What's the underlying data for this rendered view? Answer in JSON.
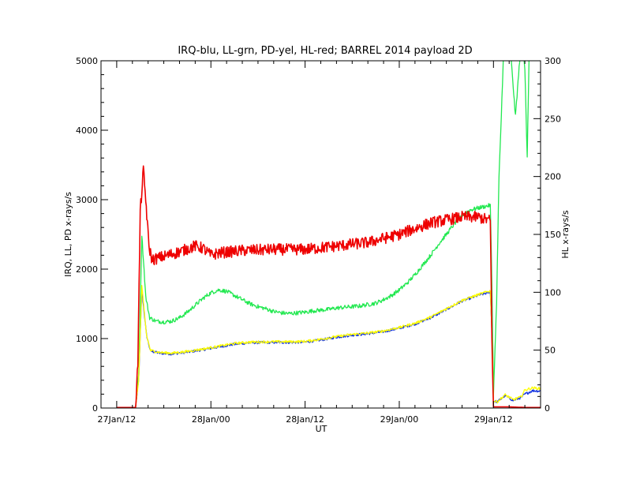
{
  "chart_data": {
    "type": "line",
    "title": "IRQ-blu, LL-grn, PD-yel, HL-red; BARREL 2014 payload 2D",
    "xlabel": "UT",
    "ylabel": "IRQ, LL, PD x-rays/s",
    "y2label": "HL x-rays/s",
    "x_ticks": [
      "27Jan/12",
      "28Jan/00",
      "28Jan/12",
      "29Jan/00",
      "29Jan/12"
    ],
    "xlim_hours": [
      -2,
      54
    ],
    "ylim": [
      0,
      5000
    ],
    "y_ticks": [
      0,
      1000,
      2000,
      3000,
      4000,
      5000
    ],
    "y2lim": [
      0,
      300
    ],
    "y2_ticks": [
      0,
      50,
      100,
      150,
      200,
      250,
      300
    ],
    "grid": false,
    "series": [
      {
        "axis": "left",
        "color": "#1030e0",
        "points": [
          [
            0,
            10
          ],
          [
            2.4,
            10
          ],
          [
            2.8,
            400
          ],
          [
            3.2,
            1700
          ],
          [
            3.8,
            1050
          ],
          [
            4.3,
            820
          ],
          [
            5.5,
            790
          ],
          [
            7,
            780
          ],
          [
            9,
            805
          ],
          [
            11,
            840
          ],
          [
            13,
            880
          ],
          [
            15,
            920
          ],
          [
            17,
            940
          ],
          [
            20,
            945
          ],
          [
            22,
            945
          ],
          [
            24,
            950
          ],
          [
            26,
            980
          ],
          [
            28,
            1020
          ],
          [
            30,
            1050
          ],
          [
            32,
            1070
          ],
          [
            34,
            1100
          ],
          [
            36,
            1150
          ],
          [
            38,
            1210
          ],
          [
            40,
            1300
          ],
          [
            42,
            1420
          ],
          [
            44,
            1540
          ],
          [
            46,
            1620
          ],
          [
            47.6,
            1670
          ],
          [
            47.8,
            1100
          ],
          [
            48,
            100
          ],
          [
            48.5,
            90
          ],
          [
            49.5,
            180
          ],
          [
            50.5,
            110
          ],
          [
            51.5,
            150
          ],
          [
            52,
            200
          ],
          [
            53,
            250
          ],
          [
            54.8,
            240
          ]
        ]
      },
      {
        "axis": "left",
        "color": "#22e850",
        "points": [
          [
            0,
            10
          ],
          [
            2.4,
            10
          ],
          [
            2.8,
            500
          ],
          [
            3.2,
            2500
          ],
          [
            3.7,
            1600
          ],
          [
            4.2,
            1300
          ],
          [
            5,
            1250
          ],
          [
            6,
            1240
          ],
          [
            7,
            1250
          ],
          [
            8,
            1300
          ],
          [
            9,
            1380
          ],
          [
            10,
            1480
          ],
          [
            11,
            1580
          ],
          [
            12,
            1660
          ],
          [
            13,
            1700
          ],
          [
            14,
            1680
          ],
          [
            15,
            1620
          ],
          [
            16,
            1560
          ],
          [
            17,
            1500
          ],
          [
            18,
            1460
          ],
          [
            19,
            1430
          ],
          [
            20,
            1390
          ],
          [
            21,
            1370
          ],
          [
            22,
            1360
          ],
          [
            23,
            1370
          ],
          [
            24,
            1380
          ],
          [
            25,
            1400
          ],
          [
            26,
            1410
          ],
          [
            27,
            1420
          ],
          [
            28,
            1440
          ],
          [
            29,
            1450
          ],
          [
            30,
            1460
          ],
          [
            31,
            1470
          ],
          [
            32,
            1490
          ],
          [
            33,
            1510
          ],
          [
            34,
            1560
          ],
          [
            35,
            1620
          ],
          [
            36,
            1700
          ],
          [
            37,
            1800
          ],
          [
            38,
            1920
          ],
          [
            39,
            2060
          ],
          [
            40,
            2200
          ],
          [
            41,
            2360
          ],
          [
            42,
            2500
          ],
          [
            43,
            2650
          ],
          [
            44,
            2780
          ],
          [
            45,
            2850
          ],
          [
            46,
            2880
          ],
          [
            47.6,
            2920
          ],
          [
            47.8,
            1800
          ],
          [
            48,
            200
          ],
          [
            48.4,
            1500
          ],
          [
            48.7,
            3300
          ],
          [
            49,
            4200
          ],
          [
            49.3,
            5200
          ],
          [
            50,
            5400
          ],
          [
            50.8,
            4200
          ],
          [
            51.2,
            4800
          ],
          [
            51.6,
            5400
          ],
          [
            52,
            4900
          ],
          [
            52.3,
            3600
          ],
          [
            52.6,
            5400
          ]
        ]
      },
      {
        "axis": "left",
        "color": "#ffff00",
        "points": [
          [
            0,
            10
          ],
          [
            2.4,
            10
          ],
          [
            2.8,
            400
          ],
          [
            3.2,
            1750
          ],
          [
            3.8,
            1050
          ],
          [
            4.3,
            830
          ],
          [
            5.5,
            800
          ],
          [
            7,
            790
          ],
          [
            9,
            815
          ],
          [
            11,
            850
          ],
          [
            13,
            890
          ],
          [
            15,
            930
          ],
          [
            17,
            950
          ],
          [
            20,
            955
          ],
          [
            22,
            955
          ],
          [
            24,
            960
          ],
          [
            26,
            990
          ],
          [
            28,
            1030
          ],
          [
            30,
            1060
          ],
          [
            32,
            1080
          ],
          [
            34,
            1110
          ],
          [
            36,
            1160
          ],
          [
            38,
            1220
          ],
          [
            40,
            1310
          ],
          [
            42,
            1430
          ],
          [
            44,
            1550
          ],
          [
            46,
            1630
          ],
          [
            47.6,
            1690
          ],
          [
            47.8,
            1100
          ],
          [
            48,
            100
          ],
          [
            48.5,
            90
          ],
          [
            49.5,
            190
          ],
          [
            50.5,
            120
          ],
          [
            51.5,
            160
          ],
          [
            52,
            260
          ],
          [
            53,
            290
          ],
          [
            54.8,
            270
          ]
        ]
      },
      {
        "axis": "right",
        "color": "#ee0000",
        "points": [
          [
            0,
            0.5
          ],
          [
            2.4,
            0.5
          ],
          [
            2.7,
            40
          ],
          [
            3.0,
            170
          ],
          [
            3.4,
            205
          ],
          [
            3.7,
            180
          ],
          [
            4.1,
            140
          ],
          [
            4.5,
            128
          ],
          [
            6,
            131
          ],
          [
            8,
            135
          ],
          [
            10,
            140
          ],
          [
            11,
            138
          ],
          [
            12,
            132
          ],
          [
            13,
            134
          ],
          [
            16,
            136
          ],
          [
            20,
            137
          ],
          [
            24,
            137
          ],
          [
            28,
            140
          ],
          [
            32,
            143
          ],
          [
            36,
            150
          ],
          [
            40,
            160
          ],
          [
            44,
            165
          ],
          [
            46,
            165
          ],
          [
            47.6,
            162
          ],
          [
            47.8,
            60
          ],
          [
            48,
            1
          ],
          [
            50,
            1
          ],
          [
            52,
            0.5
          ],
          [
            54.8,
            0.5
          ]
        ]
      }
    ]
  }
}
